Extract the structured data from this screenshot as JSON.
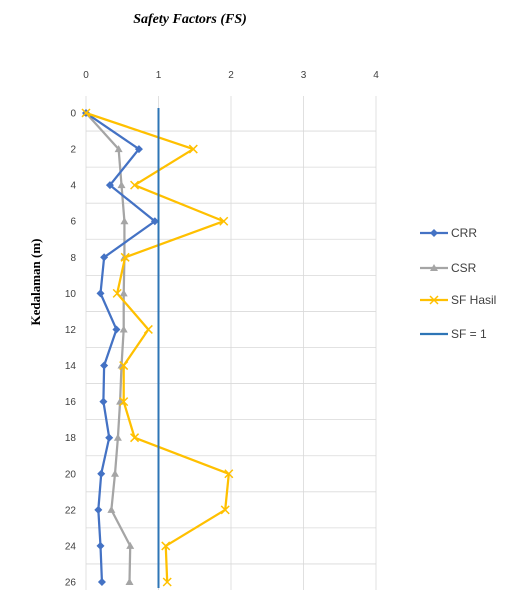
{
  "chart_data": {
    "type": "line",
    "title": "Safety Factors (FS)",
    "ylabel": "Kedalaman (m)",
    "xlabel": "",
    "xlim": [
      0,
      4
    ],
    "ylim": [
      0,
      26
    ],
    "x_ticks": [
      0,
      1,
      2,
      3,
      4
    ],
    "y_ticks": [
      0,
      2,
      4,
      6,
      8,
      10,
      12,
      14,
      16,
      18,
      20,
      22,
      24,
      26
    ],
    "y_axis_reversed": true,
    "x_axis_position": "top",
    "grid": true,
    "legend_position": "right",
    "depth": [
      0,
      2,
      4,
      6,
      8,
      10,
      12,
      14,
      16,
      18,
      20,
      22,
      24,
      26
    ],
    "series": [
      {
        "name": "CRR",
        "color": "#4472c4",
        "marker": "diamond",
        "values": [
          0,
          0.73,
          0.33,
          0.95,
          0.25,
          0.2,
          0.42,
          0.25,
          0.24,
          0.32,
          0.21,
          0.17,
          0.2,
          0.22
        ]
      },
      {
        "name": "CSR",
        "color": "#a5a5a5",
        "marker": "triangle",
        "values": [
          0,
          0.45,
          0.49,
          0.53,
          0.53,
          0.52,
          0.52,
          0.49,
          0.47,
          0.44,
          0.4,
          0.35,
          0.61,
          0.6
        ]
      },
      {
        "name": "SF Hasil",
        "color": "#ffc000",
        "marker": "x",
        "values": [
          0,
          1.48,
          0.67,
          1.9,
          0.54,
          0.43,
          0.86,
          0.52,
          0.52,
          0.67,
          1.97,
          1.92,
          1.1,
          1.12
        ]
      },
      {
        "name": "SF = 1",
        "color": "#2e75b6",
        "marker": "none",
        "values": [
          1,
          1,
          1,
          1,
          1,
          1,
          1,
          1,
          1,
          1,
          1,
          1,
          1,
          1
        ]
      }
    ]
  }
}
